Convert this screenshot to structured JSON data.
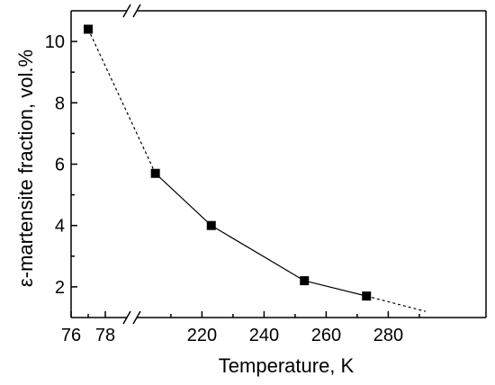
{
  "chart_data": {
    "type": "scatter",
    "xlabel": "Temperature, K",
    "ylabel": "ε-martensite fraction, vol.%",
    "x_break": {
      "before": [
        76,
        78
      ],
      "after": [
        200,
        300
      ]
    },
    "ylim": [
      1,
      11
    ],
    "x_ticks_left": [
      76,
      78
    ],
    "x_ticks_right": [
      220,
      240,
      260,
      280
    ],
    "x_tick_labels_left": [
      "76",
      "78"
    ],
    "x_tick_labels_right": [
      "220",
      "240",
      "260",
      "280"
    ],
    "y_ticks": [
      2,
      4,
      6,
      8,
      10
    ],
    "y_tick_labels": [
      "2",
      "4",
      "6",
      "8",
      "10"
    ],
    "points": [
      {
        "x": 77,
        "y": 10.4
      },
      {
        "x": 205,
        "y": 5.7
      },
      {
        "x": 223,
        "y": 4.0
      },
      {
        "x": 253,
        "y": 2.2
      },
      {
        "x": 273,
        "y": 1.7
      }
    ],
    "extrapolation_end": {
      "x": 292,
      "y": 1.2
    },
    "marker": "square",
    "color": "#000000"
  }
}
